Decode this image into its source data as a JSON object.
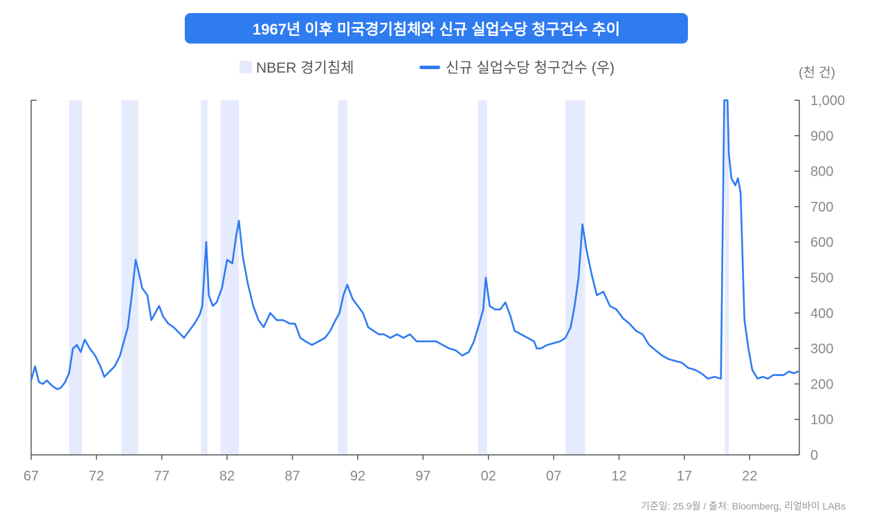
{
  "title": "1967년 이후 미국경기침체와 신규 실업수당 청구건수 추이",
  "legend": {
    "recession_label": "NBER 경기침체",
    "claims_label": "신규 실업수당 청구건수 (우)"
  },
  "unit_label": "(천 건)",
  "source": "기준일: 25.9월 / 출처: Bloomberg, 리얼바이 LABs",
  "colors": {
    "accent": "#2f7bf0",
    "recession": "#e6eafd",
    "axis": "#555555",
    "tick_text": "#888888"
  },
  "chart_data": {
    "type": "line",
    "title": "1967년 이후 미국경기침체와 신규 실업수당 청구건수 추이",
    "xlim": [
      1967.0,
      2025.8
    ],
    "ylim": [
      0,
      1000
    ],
    "x_ticks": [
      {
        "value": 1967,
        "label": "67"
      },
      {
        "value": 1972,
        "label": "72"
      },
      {
        "value": 1977,
        "label": "77"
      },
      {
        "value": 1982,
        "label": "82"
      },
      {
        "value": 1987,
        "label": "87"
      },
      {
        "value": 1992,
        "label": "92"
      },
      {
        "value": 1997,
        "label": "97"
      },
      {
        "value": 2002,
        "label": "02"
      },
      {
        "value": 2007,
        "label": "07"
      },
      {
        "value": 2012,
        "label": "12"
      },
      {
        "value": 2017,
        "label": "17"
      },
      {
        "value": 2022,
        "label": "22"
      }
    ],
    "y_ticks": [
      {
        "value": 0,
        "label": "0"
      },
      {
        "value": 100,
        "label": "100"
      },
      {
        "value": 200,
        "label": "200"
      },
      {
        "value": 300,
        "label": "300"
      },
      {
        "value": 400,
        "label": "400"
      },
      {
        "value": 500,
        "label": "500"
      },
      {
        "value": 600,
        "label": "600"
      },
      {
        "value": 700,
        "label": "700"
      },
      {
        "value": 800,
        "label": "800"
      },
      {
        "value": 900,
        "label": "900"
      },
      {
        "value": 1000,
        "label": "1,000"
      }
    ],
    "y_axis_side": "right",
    "grid": false,
    "recessions": [
      [
        1969.9,
        1970.9
      ],
      [
        1973.9,
        1975.2
      ],
      [
        1980.0,
        1980.5
      ],
      [
        1981.5,
        1982.9
      ],
      [
        1990.5,
        1991.2
      ],
      [
        2001.2,
        2001.9
      ],
      [
        2007.9,
        2009.4
      ],
      [
        2020.1,
        2020.4
      ]
    ],
    "series": [
      {
        "name": "신규 실업수당 청구건수 (우)",
        "color": "#2f7bf0",
        "x": [
          1967.0,
          1967.3,
          1967.6,
          1967.9,
          1968.2,
          1968.6,
          1969.0,
          1969.3,
          1969.6,
          1969.9,
          1970.2,
          1970.5,
          1970.8,
          1971.1,
          1971.5,
          1971.9,
          1972.1,
          1972.3,
          1972.6,
          1973.0,
          1973.4,
          1973.8,
          1974.1,
          1974.4,
          1974.7,
          1975.0,
          1975.2,
          1975.5,
          1975.9,
          1976.2,
          1976.5,
          1976.8,
          1977.1,
          1977.5,
          1977.9,
          1978.3,
          1978.7,
          1979.1,
          1979.5,
          1979.9,
          1980.1,
          1980.4,
          1980.6,
          1980.9,
          1981.2,
          1981.6,
          1982.0,
          1982.4,
          1982.7,
          1982.9,
          1983.2,
          1983.6,
          1984.0,
          1984.4,
          1984.8,
          1985.3,
          1985.8,
          1986.3,
          1986.8,
          1987.2,
          1987.6,
          1988.0,
          1988.5,
          1989.0,
          1989.5,
          1989.9,
          1990.3,
          1990.6,
          1990.9,
          1991.2,
          1991.6,
          1992.0,
          1992.4,
          1992.8,
          1993.2,
          1993.6,
          1994.0,
          1994.5,
          1995.0,
          1995.5,
          1996.0,
          1996.5,
          1997.0,
          1997.5,
          1998.0,
          1998.5,
          1999.0,
          1999.5,
          2000.0,
          2000.5,
          2000.9,
          2001.3,
          2001.6,
          2001.8,
          2002.1,
          2002.5,
          2002.9,
          2003.3,
          2003.7,
          2004.0,
          2004.5,
          2005.0,
          2005.5,
          2005.7,
          2006.0,
          2006.5,
          2007.0,
          2007.5,
          2007.9,
          2008.3,
          2008.6,
          2008.9,
          2009.2,
          2009.5,
          2009.9,
          2010.3,
          2010.8,
          2011.3,
          2011.8,
          2012.3,
          2012.8,
          2013.3,
          2013.8,
          2014.3,
          2014.8,
          2015.3,
          2015.8,
          2016.3,
          2016.8,
          2017.3,
          2017.8,
          2018.3,
          2018.8,
          2019.3,
          2019.8,
          2020.05,
          2020.2,
          2020.3,
          2020.4,
          2020.6,
          2020.9,
          2021.1,
          2021.3,
          2021.6,
          2021.9,
          2022.2,
          2022.6,
          2023.0,
          2023.4,
          2023.8,
          2024.2,
          2024.6,
          2025.0,
          2025.4,
          2025.7
        ],
        "values": [
          210,
          250,
          205,
          200,
          210,
          195,
          185,
          190,
          205,
          230,
          300,
          310,
          290,
          325,
          300,
          280,
          265,
          250,
          220,
          235,
          250,
          280,
          320,
          360,
          450,
          550,
          520,
          470,
          450,
          380,
          400,
          420,
          390,
          370,
          360,
          345,
          330,
          350,
          370,
          395,
          420,
          600,
          450,
          420,
          430,
          470,
          550,
          540,
          620,
          660,
          560,
          480,
          420,
          380,
          360,
          400,
          380,
          380,
          370,
          370,
          330,
          320,
          310,
          320,
          330,
          350,
          380,
          400,
          450,
          480,
          440,
          420,
          400,
          360,
          350,
          340,
          340,
          330,
          340,
          330,
          340,
          320,
          320,
          320,
          320,
          310,
          300,
          295,
          280,
          290,
          320,
          370,
          410,
          500,
          420,
          410,
          410,
          430,
          390,
          350,
          340,
          330,
          320,
          300,
          300,
          310,
          315,
          320,
          330,
          360,
          420,
          500,
          650,
          580,
          510,
          450,
          460,
          420,
          410,
          385,
          370,
          350,
          340,
          310,
          295,
          280,
          270,
          265,
          260,
          245,
          240,
          230,
          215,
          220,
          215,
          1000,
          1000,
          1000,
          850,
          780,
          760,
          780,
          740,
          380,
          300,
          240,
          215,
          220,
          215,
          225,
          225,
          225,
          235,
          230,
          235
        ]
      }
    ]
  }
}
